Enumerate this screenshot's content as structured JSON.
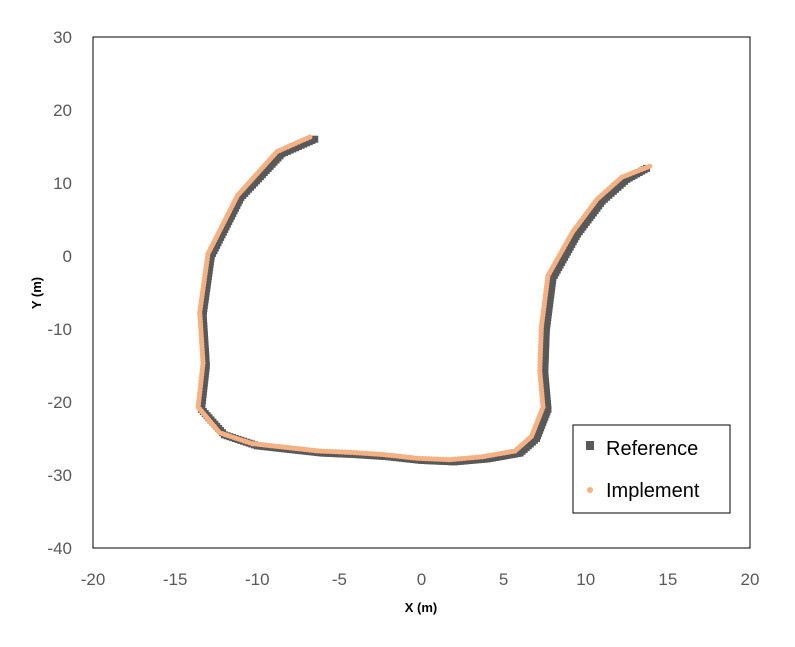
{
  "chart_data": {
    "type": "scatter",
    "title": "",
    "xlabel": "X (m)",
    "ylabel": "Y (m)",
    "xlim": [
      -20,
      20
    ],
    "ylim": [
      -40,
      30
    ],
    "x_ticks": [
      -20,
      -15,
      -10,
      -5,
      0,
      5,
      10,
      15,
      20
    ],
    "y_ticks": [
      -40,
      -30,
      -20,
      -10,
      0,
      10,
      20,
      30
    ],
    "x_tick_labels": [
      "-20",
      "-15",
      "-10",
      "-5",
      "0",
      "5",
      "10",
      "15",
      "20"
    ],
    "y_tick_labels": [
      "-40",
      "-30",
      "-20",
      "-10",
      "0",
      "10",
      "20",
      "30"
    ],
    "grid": false,
    "legend": {
      "position": "bottom-right",
      "entries": [
        "Reference",
        "Implement"
      ]
    },
    "series": [
      {
        "name": "Reference",
        "marker": "square",
        "color": "#595959",
        "note_shape": "serpentine path, nearly coincident with Implement",
        "x": [
          -6.5,
          -8.5,
          -11.0,
          -12.8,
          -13.3,
          -13.1,
          -13.4,
          -12.0,
          -10.0,
          -8.0,
          -6.0,
          -4.0,
          -2.0,
          0.0,
          2.0,
          4.0,
          6.0,
          7.0,
          7.7,
          7.5,
          7.6,
          8.0,
          9.5,
          11.0,
          12.5,
          13.7
        ],
        "y": [
          16.0,
          14.0,
          8.0,
          0.0,
          -8.0,
          -15.0,
          -21.0,
          -24.5,
          -26.0,
          -26.5,
          -27.0,
          -27.2,
          -27.5,
          -28.0,
          -28.2,
          -27.8,
          -27.0,
          -25.0,
          -21.0,
          -16.0,
          -10.0,
          -3.0,
          3.0,
          7.5,
          10.5,
          12.0
        ]
      },
      {
        "name": "Implement",
        "marker": "circle",
        "color": "#F4B183",
        "x": [
          -6.8,
          -8.8,
          -11.2,
          -13.0,
          -13.5,
          -13.3,
          -13.6,
          -12.3,
          -10.3,
          -8.3,
          -6.3,
          -4.3,
          -2.3,
          -0.3,
          1.7,
          3.7,
          5.7,
          6.7,
          7.4,
          7.2,
          7.3,
          7.7,
          9.2,
          10.7,
          12.2,
          13.9
        ],
        "y": [
          16.3,
          14.3,
          8.3,
          0.3,
          -7.7,
          -14.7,
          -20.7,
          -24.2,
          -25.7,
          -26.2,
          -26.7,
          -26.9,
          -27.2,
          -27.7,
          -27.9,
          -27.5,
          -26.7,
          -24.7,
          -20.7,
          -15.7,
          -9.7,
          -2.7,
          3.3,
          7.8,
          10.8,
          12.3
        ]
      }
    ]
  }
}
